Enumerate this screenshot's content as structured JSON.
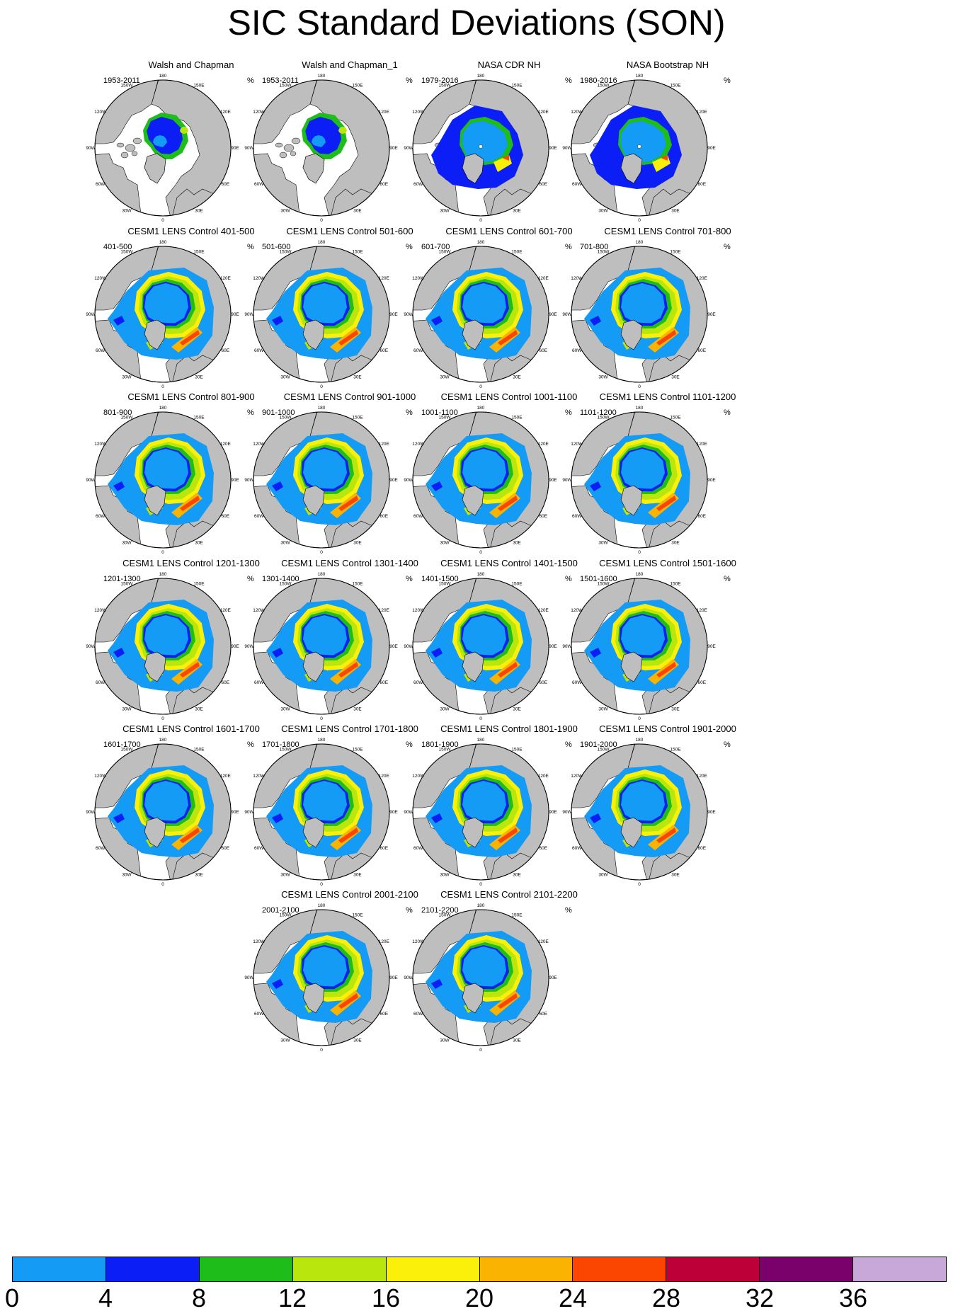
{
  "title": "SIC Standard Deviations (SON)",
  "unit": "%",
  "lon_labels": [
    "180",
    "150E",
    "120E",
    "90E",
    "60E",
    "30E",
    "0",
    "30W",
    "60W",
    "90W",
    "120W",
    "150W"
  ],
  "panels": [
    {
      "title": "Walsh and Chapman",
      "years": "1953-2011",
      "style": "wc"
    },
    {
      "title": "Walsh and Chapman_1",
      "years": "1953-2011",
      "style": "wc"
    },
    {
      "title": "NASA CDR NH",
      "years": "1979-2016",
      "style": "nasa"
    },
    {
      "title": "NASA Bootstrap NH",
      "years": "1980-2016",
      "style": "nasa"
    },
    {
      "title": "CESM1 LENS Control 401-500",
      "years": "401-500",
      "style": "cesm"
    },
    {
      "title": "CESM1 LENS Control 501-600",
      "years": "501-600",
      "style": "cesm"
    },
    {
      "title": "CESM1 LENS Control 601-700",
      "years": "601-700",
      "style": "cesm"
    },
    {
      "title": "CESM1 LENS Control 701-800",
      "years": "701-800",
      "style": "cesm"
    },
    {
      "title": "CESM1 LENS Control 801-900",
      "years": "801-900",
      "style": "cesm"
    },
    {
      "title": "CESM1 LENS Control 901-1000",
      "years": "901-1000",
      "style": "cesm"
    },
    {
      "title": "CESM1 LENS Control 1001-1100",
      "years": "1001-1100",
      "style": "cesm"
    },
    {
      "title": "CESM1 LENS Control 1101-1200",
      "years": "1101-1200",
      "style": "cesm"
    },
    {
      "title": "CESM1 LENS Control 1201-1300",
      "years": "1201-1300",
      "style": "cesm"
    },
    {
      "title": "CESM1 LENS Control 1301-1400",
      "years": "1301-1400",
      "style": "cesm"
    },
    {
      "title": "CESM1 LENS Control 1401-1500",
      "years": "1401-1500",
      "style": "cesm"
    },
    {
      "title": "CESM1 LENS Control 1501-1600",
      "years": "1501-1600",
      "style": "cesm"
    },
    {
      "title": "CESM1 LENS Control 1601-1700",
      "years": "1601-1700",
      "style": "cesm"
    },
    {
      "title": "CESM1 LENS Control 1701-1800",
      "years": "1701-1800",
      "style": "cesm"
    },
    {
      "title": "CESM1 LENS Control 1801-1900",
      "years": "1801-1900",
      "style": "cesm"
    },
    {
      "title": "CESM1 LENS Control 1901-2000",
      "years": "1901-2000",
      "style": "cesm"
    },
    {
      "title": "CESM1 LENS Control 2001-2100",
      "years": "2001-2100",
      "style": "cesm"
    },
    {
      "title": "CESM1 LENS Control 2101-2200",
      "years": "2101-2200",
      "style": "cesm"
    }
  ],
  "colorbar": {
    "labels": [
      "0",
      "4",
      "8",
      "12",
      "16",
      "20",
      "24",
      "28",
      "32",
      "36"
    ],
    "colors": [
      "#149bf5",
      "#0a1ef5",
      "#1ebd1a",
      "#b9e60c",
      "#faf00a",
      "#fab400",
      "#fa4600",
      "#bd0038",
      "#7a006b",
      "#c8a8d8"
    ]
  },
  "map_colors": {
    "land": "#bebebe",
    "ocean": "#ffffff",
    "coast": "#000000"
  }
}
